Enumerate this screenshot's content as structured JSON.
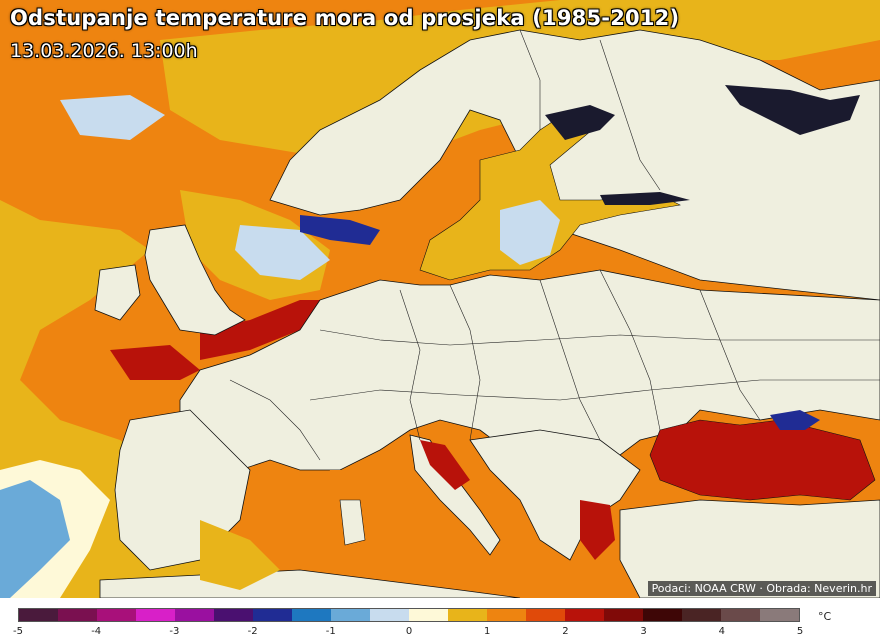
{
  "title": "Odstupanje temperature mora od prosjeka (1985-2012)",
  "date": "13.03.2026. 13:00h",
  "credits": "Podaci: NOAA CRW · Obrada: Neverin.hr",
  "legend": {
    "unit": "°C",
    "ticks": [
      "-5",
      "-4",
      "-3",
      "-2",
      "-1",
      "0",
      "1",
      "2",
      "3",
      "4",
      "5"
    ],
    "colors": [
      "#4a1a3c",
      "#7a1050",
      "#a8107a",
      "#d820c8",
      "#9a10a0",
      "#4a1070",
      "#202c94",
      "#1e78c0",
      "#6aaad8",
      "#c8dcee",
      "#fef9d8",
      "#e8b41a",
      "#ee8410",
      "#e04a0a",
      "#b8120a",
      "#800a08",
      "#3e0606",
      "#4a2424",
      "#6a4a4a",
      "#8a7a7a"
    ]
  },
  "colors": {
    "land": "#efefdf",
    "anom_0_1": "#e8b41a",
    "anom_1_2": "#ee8410",
    "anom_2_3": "#c11a0a",
    "anom_neg": "#6aaad8",
    "ice": "#1a1a2e"
  }
}
